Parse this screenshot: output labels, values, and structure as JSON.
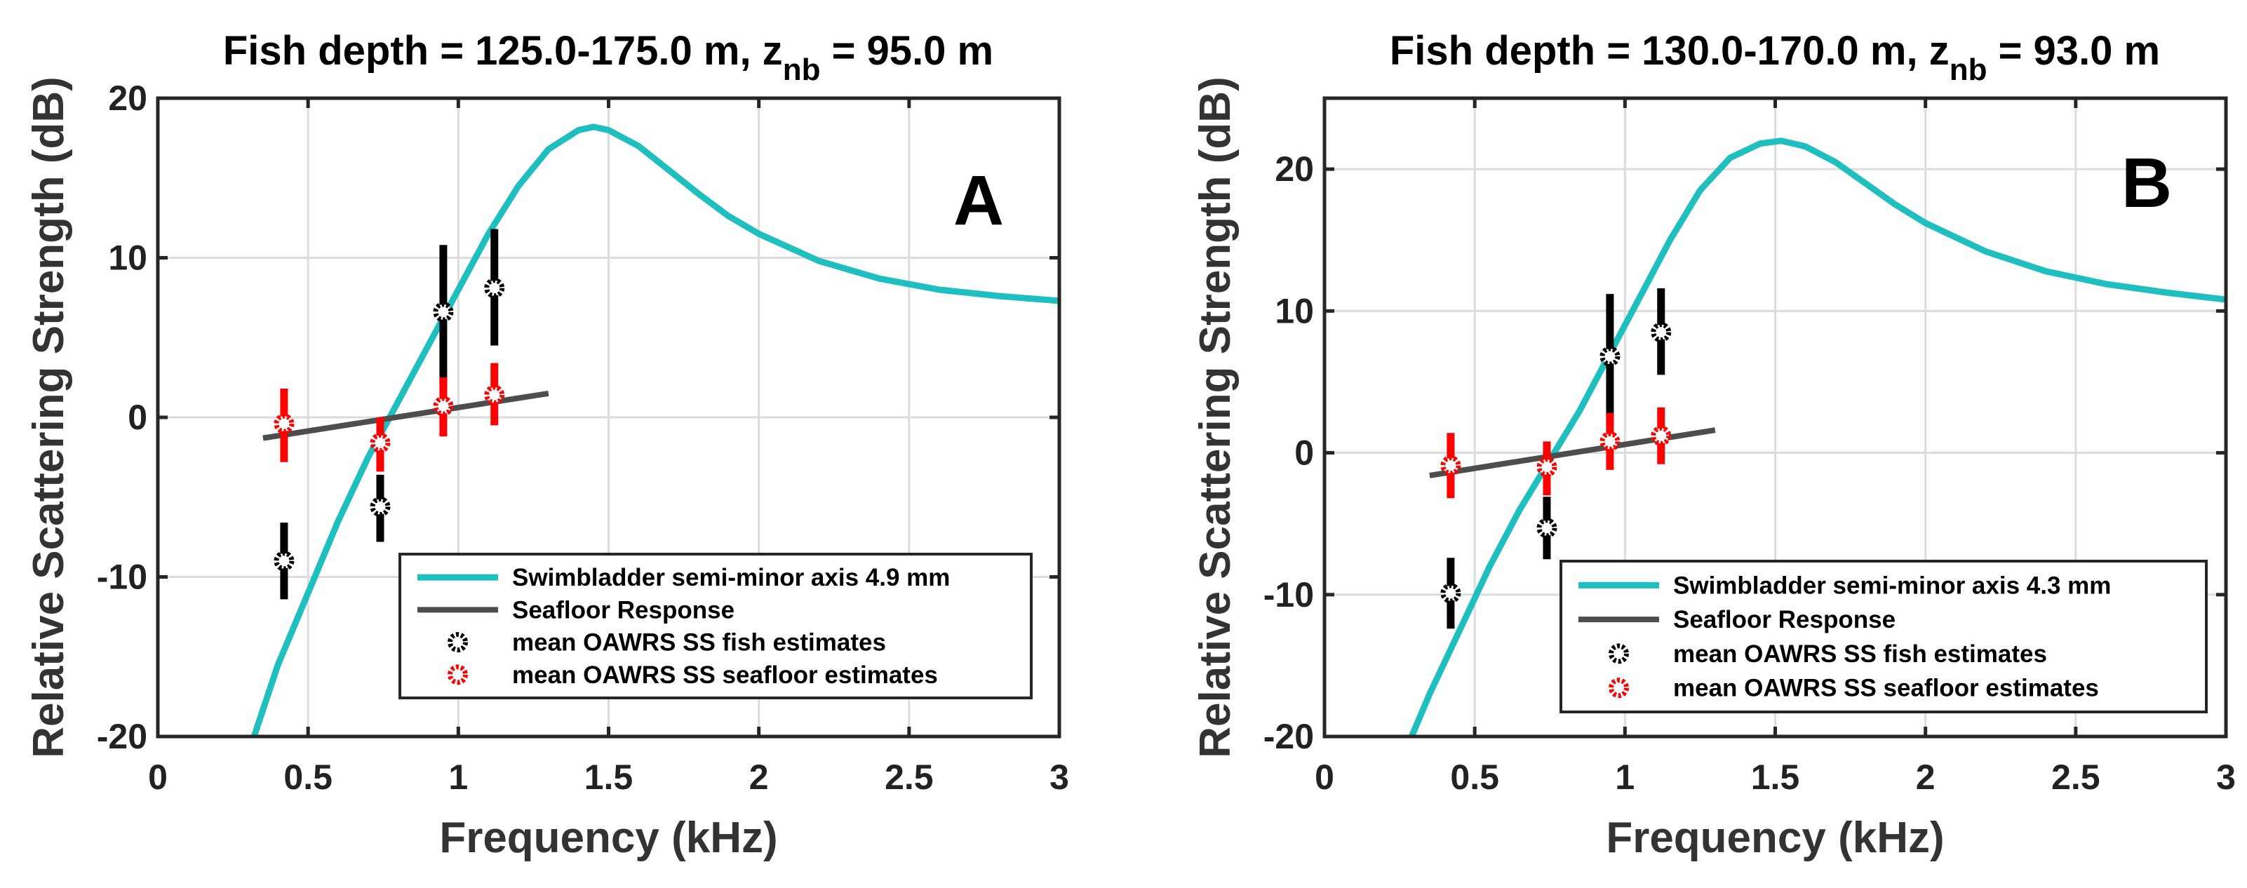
{
  "chart_data": [
    {
      "type": "line",
      "panel_label": "A",
      "title": "Fish depth = 125.0-175.0 m, z",
      "title_sub": "nb",
      "title_suffix": " = 95.0 m",
      "xlabel": "Frequency (kHz)",
      "ylabel": "Relative Scattering Strength (dB)",
      "xlim": [
        0,
        3
      ],
      "ylim": [
        -20,
        20
      ],
      "xticks": [
        0,
        0.5,
        1,
        1.5,
        2,
        2.5,
        3
      ],
      "xtick_labels": [
        "0",
        "0.5",
        "1",
        "1.5",
        "2",
        "2.5",
        "3"
      ],
      "yticks": [
        -20,
        -10,
        0,
        10,
        20
      ],
      "ytick_labels": [
        "-20",
        "-10",
        "0",
        "10",
        "20"
      ],
      "grid": true,
      "legend_position": "bottom-right",
      "series": [
        {
          "name": "Swimbladder semi-minor axis 4.9 mm",
          "kind": "line",
          "color": "#1fbfbf",
          "x": [
            0.32,
            0.4,
            0.5,
            0.6,
            0.7,
            0.8,
            0.9,
            1.0,
            1.1,
            1.2,
            1.3,
            1.4,
            1.45,
            1.5,
            1.6,
            1.7,
            1.8,
            1.9,
            2.0,
            2.2,
            2.4,
            2.6,
            2.8,
            3.0
          ],
          "y": [
            -20,
            -15.5,
            -11.0,
            -6.5,
            -2.5,
            1.0,
            4.5,
            8.0,
            11.5,
            14.5,
            16.8,
            18.0,
            18.2,
            18.0,
            17.0,
            15.5,
            14.0,
            12.6,
            11.5,
            9.8,
            8.7,
            8.0,
            7.6,
            7.3
          ]
        },
        {
          "name": "Seafloor Response",
          "kind": "line",
          "color": "#4d4d4d",
          "x": [
            0.35,
            1.3
          ],
          "y": [
            -1.3,
            1.5
          ]
        },
        {
          "name": "mean OAWRS SS fish estimates",
          "kind": "errorbar",
          "color": "#000000",
          "x": [
            0.42,
            0.74,
            0.95,
            1.12
          ],
          "y": [
            -9.0,
            -5.6,
            6.6,
            8.1
          ],
          "err_low": [
            -11.4,
            -7.8,
            2.0,
            4.5
          ],
          "err_high": [
            -6.6,
            -3.6,
            10.8,
            11.8
          ]
        },
        {
          "name": "mean OAWRS SS seafloor estimates",
          "kind": "errorbar",
          "color": "#ff0000",
          "x": [
            0.42,
            0.74,
            0.95,
            1.12
          ],
          "y": [
            -0.4,
            -1.6,
            0.7,
            1.4
          ],
          "err_low": [
            -2.8,
            -3.4,
            -1.2,
            -0.5
          ],
          "err_high": [
            1.8,
            0.0,
            2.5,
            3.4
          ]
        }
      ]
    },
    {
      "type": "line",
      "panel_label": "B",
      "title": "Fish depth = 130.0-170.0 m, z",
      "title_sub": "nb",
      "title_suffix": " = 93.0 m",
      "xlabel": "Frequency (kHz)",
      "ylabel": "Relative Scattering Strength (dB)",
      "xlim": [
        0,
        3
      ],
      "ylim": [
        -20,
        25
      ],
      "xticks": [
        0,
        0.5,
        1,
        1.5,
        2,
        2.5,
        3
      ],
      "xtick_labels": [
        "0",
        "0.5",
        "1",
        "1.5",
        "2",
        "2.5",
        "3"
      ],
      "yticks": [
        -20,
        -10,
        0,
        10,
        20
      ],
      "ytick_labels": [
        "-20",
        "-10",
        "0",
        "10",
        "20"
      ],
      "grid": true,
      "legend_position": "bottom-right",
      "series": [
        {
          "name": "Swimbladder semi-minor axis 4.3 mm",
          "kind": "line",
          "color": "#1fbfbf",
          "x": [
            0.29,
            0.35,
            0.45,
            0.55,
            0.65,
            0.75,
            0.85,
            0.95,
            1.05,
            1.15,
            1.25,
            1.35,
            1.45,
            1.52,
            1.6,
            1.7,
            1.8,
            1.9,
            2.0,
            2.2,
            2.4,
            2.6,
            2.8,
            3.0
          ],
          "y": [
            -20,
            -17.0,
            -12.5,
            -8.0,
            -4.0,
            -0.5,
            3.0,
            7.0,
            11.0,
            15.0,
            18.5,
            20.8,
            21.8,
            22.0,
            21.6,
            20.5,
            19.0,
            17.5,
            16.2,
            14.2,
            12.8,
            11.9,
            11.3,
            10.8
          ]
        },
        {
          "name": "Seafloor Response",
          "kind": "line",
          "color": "#4d4d4d",
          "x": [
            0.35,
            1.3
          ],
          "y": [
            -1.6,
            1.6
          ]
        },
        {
          "name": "mean OAWRS SS fish estimates",
          "kind": "errorbar",
          "color": "#000000",
          "x": [
            0.42,
            0.74,
            0.95,
            1.12
          ],
          "y": [
            -9.9,
            -5.3,
            6.8,
            8.5
          ],
          "err_low": [
            -12.4,
            -7.5,
            1.8,
            5.5
          ],
          "err_high": [
            -7.4,
            -3.1,
            11.2,
            11.6
          ]
        },
        {
          "name": "mean OAWRS SS seafloor estimates",
          "kind": "errorbar",
          "color": "#ff0000",
          "x": [
            0.42,
            0.74,
            0.95,
            1.12
          ],
          "y": [
            -0.9,
            -1.0,
            0.8,
            1.2
          ],
          "err_low": [
            -3.2,
            -3.0,
            -1.2,
            -0.8
          ],
          "err_high": [
            1.4,
            0.8,
            2.8,
            3.2
          ]
        }
      ]
    }
  ]
}
